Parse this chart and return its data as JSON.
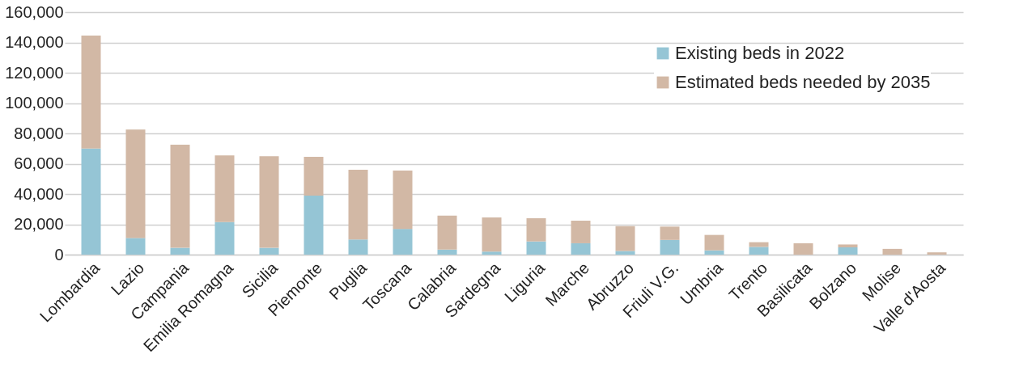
{
  "chart_data": {
    "type": "bar",
    "stacked": true,
    "categories": [
      "Lombardia",
      "Lazio",
      "Campania",
      "Emilia Romagna",
      "Sicilia",
      "Piemonte",
      "Puglia",
      "Toscana",
      "Calabria",
      "Sardegna",
      "Liguria",
      "Marche",
      "Abruzzo",
      "Friuli V.G.",
      "Umbria",
      "Trento",
      "Basilicata",
      "Bolzano",
      "Molise",
      "Valle d'Aosta"
    ],
    "series": [
      {
        "name": "Existing beds in 2022",
        "color": "#95c5d5",
        "values": [
          70000,
          11000,
          4500,
          21500,
          4500,
          39000,
          10000,
          17000,
          3300,
          2000,
          8700,
          7500,
          2400,
          9700,
          2800,
          5100,
          null,
          4800,
          null,
          null
        ]
      },
      {
        "name": "Estimated beds needed by 2035",
        "color": "#d2b8a5",
        "values": [
          74500,
          71500,
          68000,
          44000,
          60500,
          25500,
          46000,
          38500,
          22400,
          22600,
          15300,
          14900,
          16400,
          8800,
          10200,
          3100,
          7500,
          1900,
          3800,
          1500
        ]
      }
    ],
    "ylim": [
      0,
      160000
    ],
    "yticks": [
      0,
      {
        "value": 20000,
        "label": "20,000"
      },
      {
        "value": 40000,
        "label": "40,000"
      },
      {
        "value": 60000,
        "label": "60,000"
      },
      {
        "value": 80000,
        "label": "80,000"
      },
      {
        "value": 100000,
        "label": "100,000"
      },
      {
        "value": 120000,
        "label": "120,000"
      },
      {
        "value": 140000,
        "label": "140,000"
      },
      {
        "value": 160000,
        "label": "160,000"
      }
    ],
    "grid": "y",
    "legend": "top right"
  }
}
